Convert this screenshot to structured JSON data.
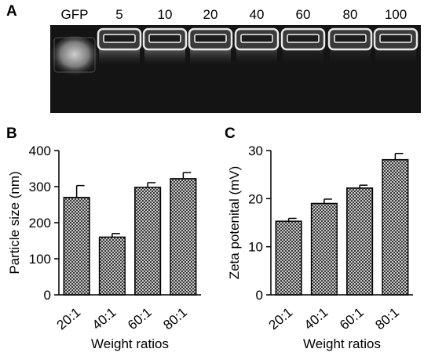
{
  "panel_a": {
    "letter": "A",
    "lane_labels": [
      "GFP",
      "5",
      "10",
      "20",
      "40",
      "60",
      "80",
      "100"
    ]
  },
  "chart_data": [
    {
      "type": "bar",
      "panel": "B",
      "categories": [
        "20:1",
        "40:1",
        "60:1",
        "80:1"
      ],
      "values": [
        270,
        160,
        298,
        322
      ],
      "errors": [
        33,
        10,
        13,
        17
      ],
      "xlabel": "Weight ratios",
      "ylabel": "Particle size (nm)",
      "ylim": [
        0,
        400
      ],
      "yticks": [
        0,
        100,
        200,
        300,
        400
      ],
      "bar_pattern": "crosshatch",
      "grid": false
    },
    {
      "type": "bar",
      "panel": "C",
      "categories": [
        "20:1",
        "40:1",
        "60:1",
        "80:1"
      ],
      "values": [
        15.3,
        19.0,
        22.2,
        28.1
      ],
      "errors": [
        0.6,
        0.9,
        0.6,
        1.3
      ],
      "xlabel": "Weight ratios",
      "ylabel": "Zeta potenital (mV)",
      "ylim": [
        0,
        30
      ],
      "yticks": [
        0,
        10,
        20,
        30
      ],
      "bar_pattern": "crosshatch",
      "grid": false
    }
  ]
}
